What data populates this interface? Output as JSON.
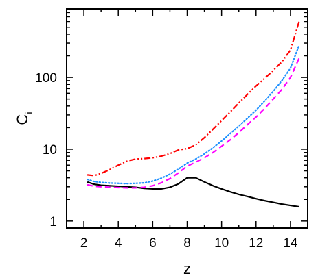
{
  "chart_data": {
    "type": "line",
    "xlabel": "z",
    "ylabel": "C",
    "ylabel_subscript": "i",
    "xlim": [
      1.0,
      15.0
    ],
    "ylim": [
      0.8,
      900
    ],
    "yscale": "log",
    "grid": false,
    "xticks": [
      {
        "value": 2,
        "label": "2"
      },
      {
        "value": 4,
        "label": "4"
      },
      {
        "value": 6,
        "label": "6"
      },
      {
        "value": 8,
        "label": "8"
      },
      {
        "value": 10,
        "label": "10"
      },
      {
        "value": 12,
        "label": "12"
      },
      {
        "value": 14,
        "label": "14"
      }
    ],
    "yticks": [
      {
        "value": 1,
        "label": "1"
      },
      {
        "value": 10,
        "label": "10"
      },
      {
        "value": 100,
        "label": "100"
      }
    ],
    "series": [
      {
        "color": "#000000",
        "style": "solid",
        "points": [
          [
            2.2,
            3.5
          ],
          [
            2.6,
            3.25
          ],
          [
            3.0,
            3.15
          ],
          [
            3.5,
            3.1
          ],
          [
            4.0,
            3.05
          ],
          [
            4.5,
            3.0
          ],
          [
            5.0,
            2.95
          ],
          [
            5.5,
            2.85
          ],
          [
            6.0,
            2.8
          ],
          [
            6.5,
            2.8
          ],
          [
            7.0,
            2.95
          ],
          [
            7.5,
            3.3
          ],
          [
            8.0,
            4.0
          ],
          [
            8.5,
            4.0
          ],
          [
            9.0,
            3.5
          ],
          [
            9.5,
            3.1
          ],
          [
            10.0,
            2.8
          ],
          [
            10.5,
            2.55
          ],
          [
            11.0,
            2.35
          ],
          [
            11.5,
            2.2
          ],
          [
            12.0,
            2.05
          ],
          [
            12.5,
            1.92
          ],
          [
            13.0,
            1.82
          ],
          [
            13.5,
            1.72
          ],
          [
            14.0,
            1.65
          ],
          [
            14.5,
            1.58
          ]
        ]
      },
      {
        "color": "#ff00ff",
        "style": "dashed",
        "points": [
          [
            2.2,
            3.2
          ],
          [
            2.6,
            3.05
          ],
          [
            3.0,
            3.0
          ],
          [
            3.5,
            2.95
          ],
          [
            4.0,
            2.92
          ],
          [
            4.5,
            2.9
          ],
          [
            5.0,
            2.9
          ],
          [
            5.5,
            2.95
          ],
          [
            6.0,
            3.1
          ],
          [
            6.5,
            3.4
          ],
          [
            7.0,
            3.9
          ],
          [
            7.5,
            4.7
          ],
          [
            8.0,
            5.8
          ],
          [
            8.5,
            6.6
          ],
          [
            9.0,
            7.6
          ],
          [
            9.5,
            9.0
          ],
          [
            10.0,
            11.0
          ],
          [
            10.5,
            13.5
          ],
          [
            11.0,
            17.0
          ],
          [
            11.5,
            22.0
          ],
          [
            12.0,
            28.0
          ],
          [
            12.5,
            37.0
          ],
          [
            13.0,
            50.0
          ],
          [
            13.5,
            68.0
          ],
          [
            14.0,
            100.0
          ],
          [
            14.5,
            185.0
          ]
        ]
      },
      {
        "color": "#1e90ff",
        "style": "dotted",
        "points": [
          [
            2.2,
            3.8
          ],
          [
            2.6,
            3.55
          ],
          [
            3.0,
            3.45
          ],
          [
            3.5,
            3.38
          ],
          [
            4.0,
            3.35
          ],
          [
            4.5,
            3.32
          ],
          [
            5.0,
            3.35
          ],
          [
            5.5,
            3.4
          ],
          [
            6.0,
            3.6
          ],
          [
            6.5,
            3.95
          ],
          [
            7.0,
            4.5
          ],
          [
            7.5,
            5.3
          ],
          [
            8.0,
            6.4
          ],
          [
            8.5,
            7.3
          ],
          [
            9.0,
            8.6
          ],
          [
            9.5,
            10.5
          ],
          [
            10.0,
            13.0
          ],
          [
            10.5,
            16.5
          ],
          [
            11.0,
            21.0
          ],
          [
            11.5,
            27.0
          ],
          [
            12.0,
            35.0
          ],
          [
            12.5,
            47.0
          ],
          [
            13.0,
            64.0
          ],
          [
            13.5,
            90.0
          ],
          [
            14.0,
            135.0
          ],
          [
            14.5,
            280.0
          ]
        ]
      },
      {
        "color": "#ff0000",
        "style": "dashdotdot",
        "points": [
          [
            2.2,
            4.4
          ],
          [
            2.6,
            4.3
          ],
          [
            3.0,
            4.6
          ],
          [
            3.5,
            5.2
          ],
          [
            4.0,
            6.0
          ],
          [
            4.5,
            6.8
          ],
          [
            5.0,
            7.3
          ],
          [
            5.5,
            7.4
          ],
          [
            6.0,
            7.6
          ],
          [
            6.5,
            8.0
          ],
          [
            7.0,
            8.7
          ],
          [
            7.5,
            9.8
          ],
          [
            8.0,
            10.2
          ],
          [
            8.5,
            11.5
          ],
          [
            9.0,
            14.5
          ],
          [
            9.5,
            19.0
          ],
          [
            10.0,
            25.0
          ],
          [
            10.5,
            33.0
          ],
          [
            11.0,
            44.0
          ],
          [
            11.5,
            58.0
          ],
          [
            12.0,
            76.0
          ],
          [
            12.5,
            97.0
          ],
          [
            13.0,
            125.0
          ],
          [
            13.5,
            165.0
          ],
          [
            14.0,
            240.0
          ],
          [
            14.5,
            600.0
          ]
        ]
      }
    ]
  }
}
